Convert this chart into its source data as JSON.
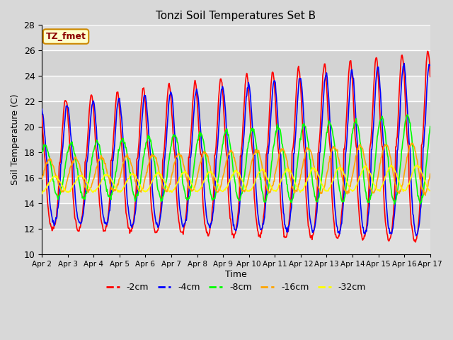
{
  "title": "Tonzi Soil Temperatures Set B",
  "xlabel": "Time",
  "ylabel": "Soil Temperature (C)",
  "ylim": [
    10,
    28
  ],
  "xlim": [
    0,
    360
  ],
  "fig_bg_color": "#d8d8d8",
  "plot_bg_color": "#e0e0e0",
  "grid_color": "white",
  "annotation_text": "TZ_fmet",
  "annotation_bg": "#ffffcc",
  "annotation_border": "#cc8800",
  "series_colors": [
    "red",
    "blue",
    "lime",
    "orange",
    "yellow"
  ],
  "series_labels": [
    "-2cm",
    "-4cm",
    "-8cm",
    "-16cm",
    "-32cm"
  ]
}
